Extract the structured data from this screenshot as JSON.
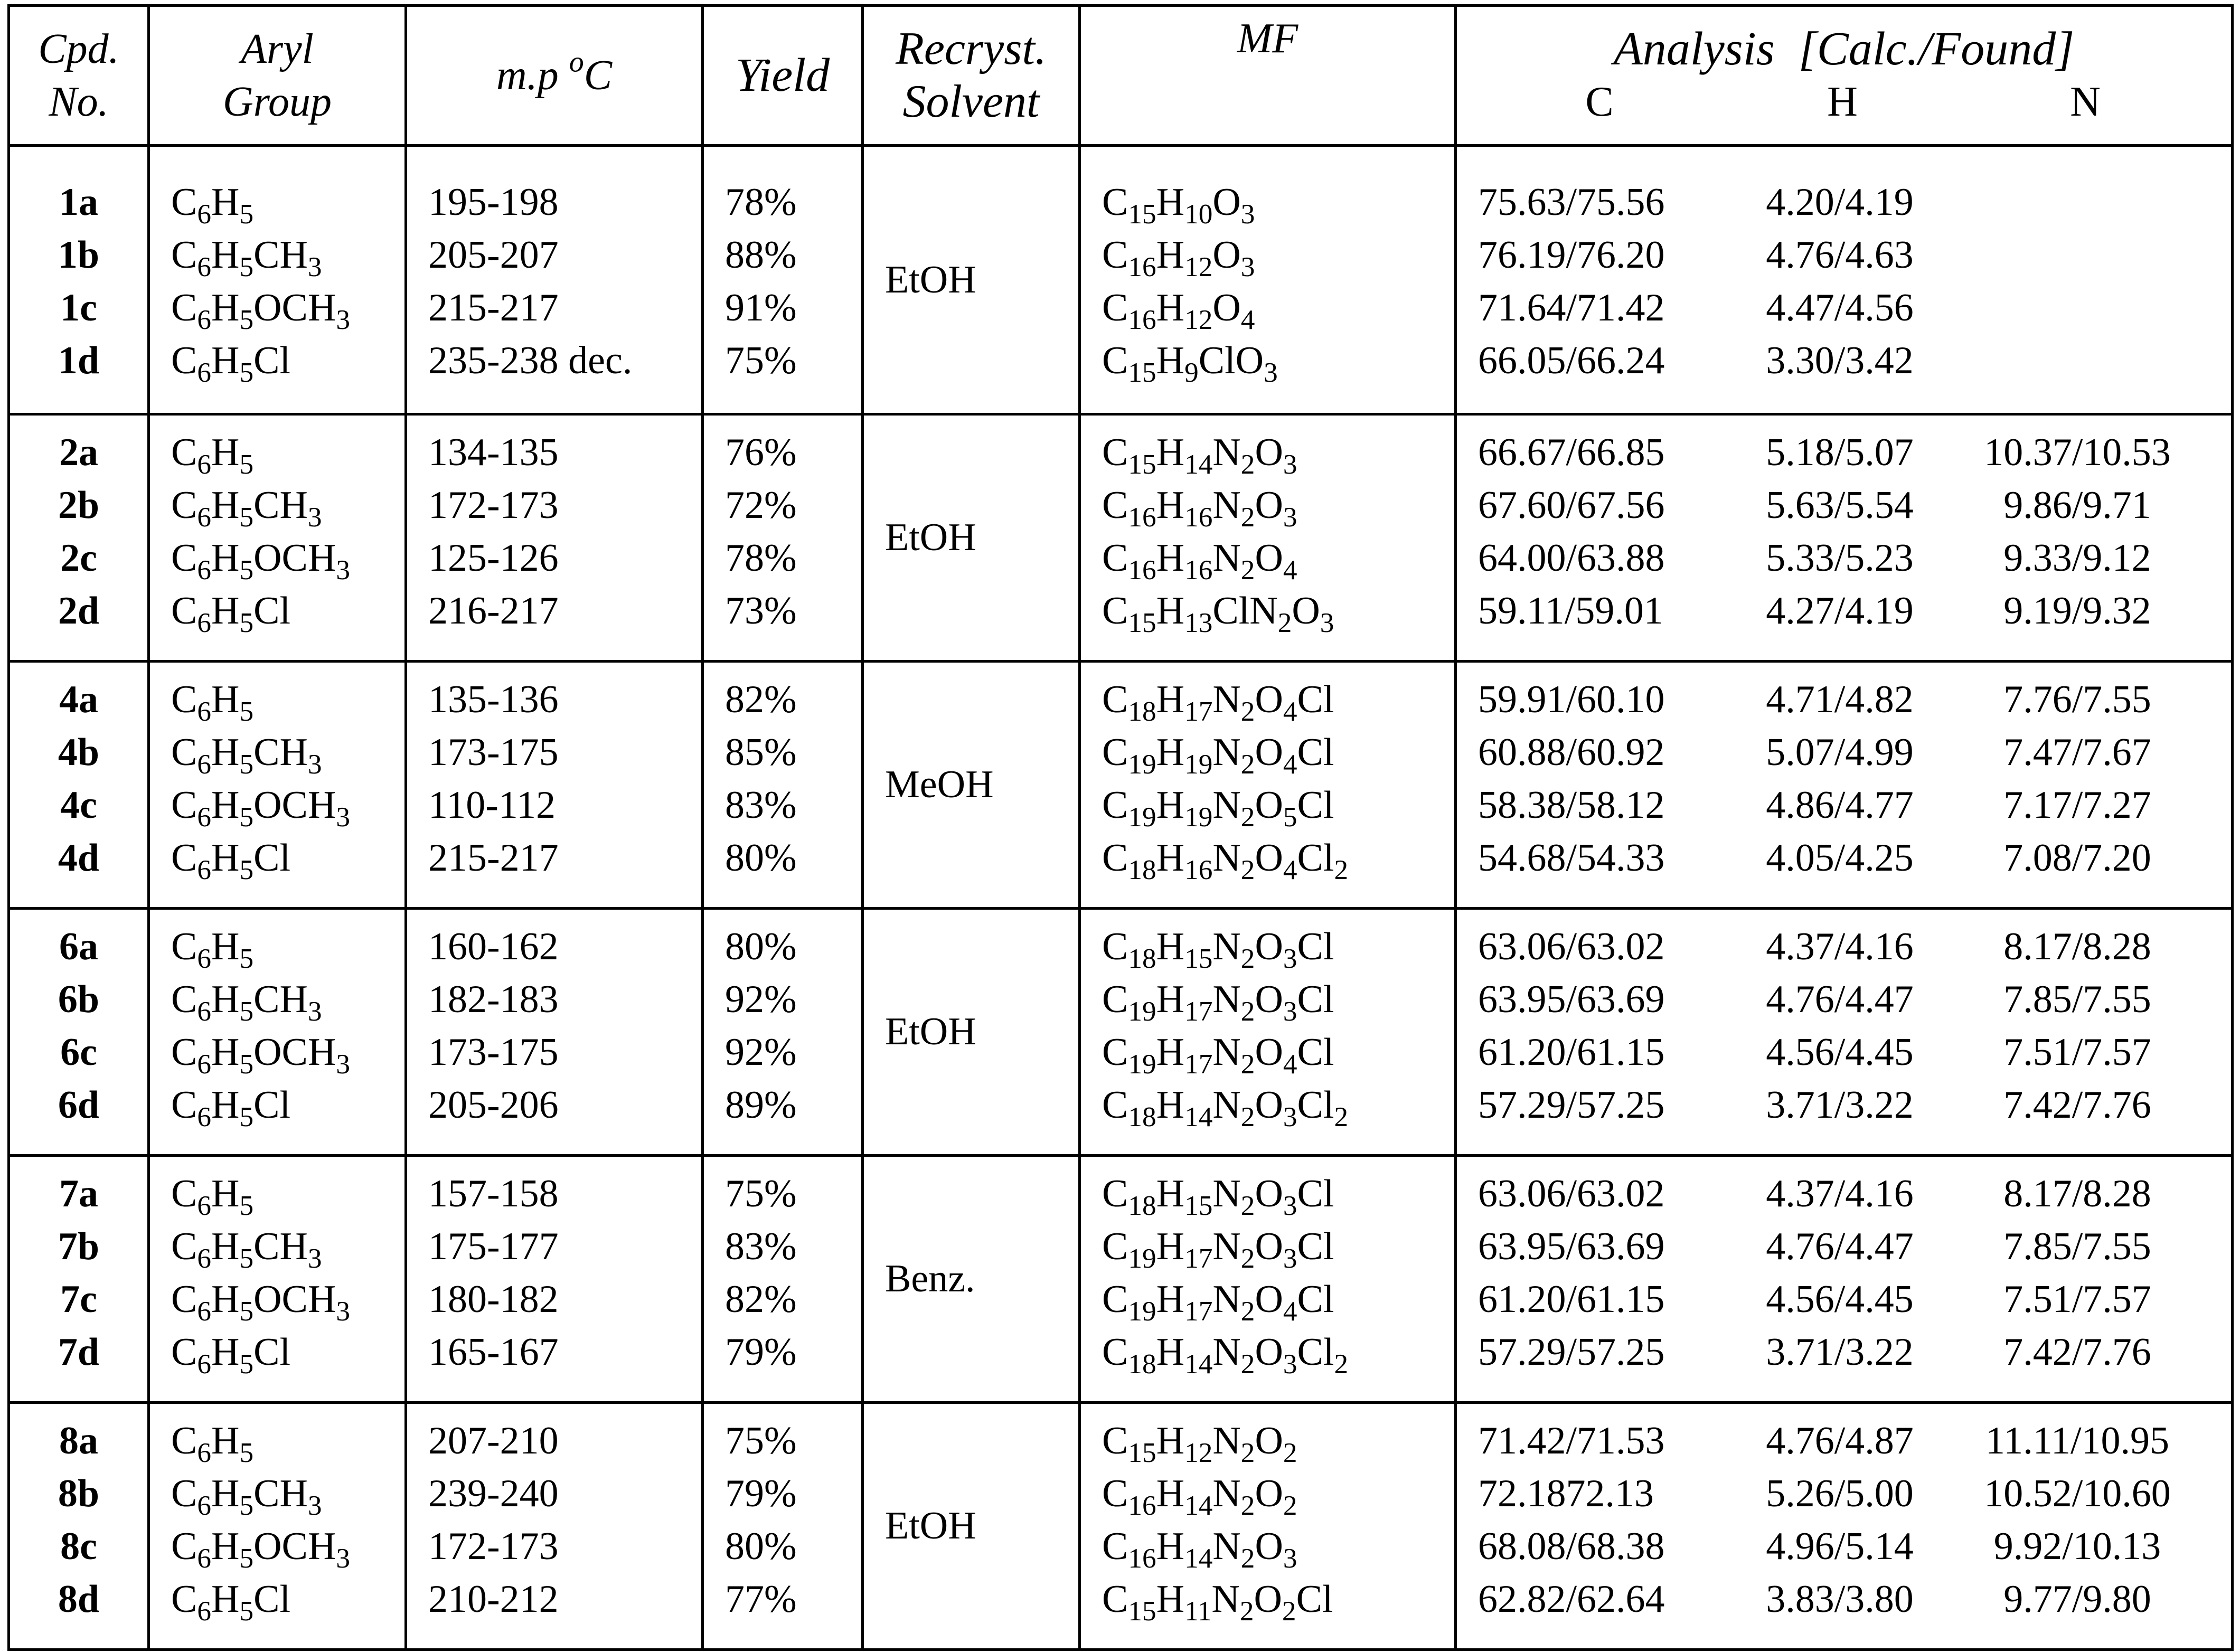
{
  "header": {
    "cpd": [
      "Cpd.",
      "No."
    ],
    "aryl": [
      "Aryl",
      "Group"
    ],
    "mp": {
      "text": "m.p",
      "sup": "o",
      "unit": "C"
    },
    "yield": "Yield",
    "solvent": [
      "Recryst.",
      "Solvent"
    ],
    "mf": "MF",
    "analysis": "Analysis  [Calc./Found]",
    "c": "C",
    "h": "H",
    "n": "N"
  },
  "groups": [
    {
      "solvent": "EtOH",
      "rows": [
        {
          "cpd": "1a",
          "aryl": "C6H5",
          "mp": "195-198",
          "yield": "78%",
          "mf": "C15H10O3",
          "c": "75.63/75.56",
          "h": "4.20/4.19"
        },
        {
          "cpd": "1b",
          "aryl": "C6H5CH3",
          "mp": "205-207",
          "yield": "88%",
          "mf": "C16H12O3",
          "c": "76.19/76.20",
          "h": "4.76/4.63"
        },
        {
          "cpd": "1c",
          "aryl": "C6H5OCH3",
          "mp": "215-217",
          "yield": "91%",
          "mf": "C16H12O4",
          "c": "71.64/71.42",
          "h": "4.47/4.56"
        },
        {
          "cpd": "1d",
          "aryl": "C6H5Cl",
          "mp": "235-238 dec.",
          "yield": "75%",
          "mf": "C15H9ClO3",
          "c": "66.05/66.24",
          "h": "3.30/3.42"
        }
      ]
    },
    {
      "solvent": "EtOH",
      "rows": [
        {
          "cpd": "2a",
          "aryl": "C6H5",
          "mp": "134-135",
          "yield": "76%",
          "mf": "C15H14N2O3",
          "c": "66.67/66.85",
          "h": "5.18/5.07",
          "n": "10.37/10.53"
        },
        {
          "cpd": "2b",
          "aryl": "C6H5CH3",
          "mp": "172-173",
          "yield": "72%",
          "mf": "C16H16N2O3",
          "c": "67.60/67.56",
          "h": "5.63/5.54",
          "n": "9.86/9.71"
        },
        {
          "cpd": "2c",
          "aryl": "C6H5OCH3",
          "mp": "125-126",
          "yield": "78%",
          "mf": "C16H16N2O4",
          "c": "64.00/63.88",
          "h": "5.33/5.23",
          "n": "9.33/9.12"
        },
        {
          "cpd": "2d",
          "aryl": "C6H5Cl",
          "mp": "216-217",
          "yield": "73%",
          "mf": "C15H13ClN2O3",
          "c": "59.11/59.01",
          "h": "4.27/4.19",
          "n": "9.19/9.32"
        }
      ]
    },
    {
      "solvent": "MeOH",
      "rows": [
        {
          "cpd": "4a",
          "aryl": "C6H5",
          "mp": "135-136",
          "yield": "82%",
          "mf": "C18H17N2O4Cl",
          "c": "59.91/60.10",
          "h": "4.71/4.82",
          "n": "7.76/7.55"
        },
        {
          "cpd": "4b",
          "aryl": "C6H5CH3",
          "mp": "173-175",
          "yield": "85%",
          "mf": "C19H19N2O4Cl",
          "c": "60.88/60.92",
          "h": "5.07/4.99",
          "n": "7.47/7.67"
        },
        {
          "cpd": "4c",
          "aryl": "C6H5OCH3",
          "mp": "110-112",
          "yield": "83%",
          "mf": "C19H19N2O5Cl",
          "c": "58.38/58.12",
          "h": "4.86/4.77",
          "n": "7.17/7.27"
        },
        {
          "cpd": "4d",
          "aryl": "C6H5Cl",
          "mp": "215-217",
          "yield": "80%",
          "mf": "C18H16N2O4Cl2",
          "c": "54.68/54.33",
          "h": "4.05/4.25",
          "n": "7.08/7.20"
        }
      ]
    },
    {
      "solvent": "EtOH",
      "rows": [
        {
          "cpd": "6a",
          "aryl": "C6H5",
          "mp": "160-162",
          "yield": "80%",
          "mf": "C18H15N2O3Cl",
          "c": "63.06/63.02",
          "h": "4.37/4.16",
          "n": "8.17/8.28"
        },
        {
          "cpd": "6b",
          "aryl": "C6H5CH3",
          "mp": "182-183",
          "yield": "92%",
          "mf": "C19H17N2O3Cl",
          "c": "63.95/63.69",
          "h": "4.76/4.47",
          "n": "7.85/7.55"
        },
        {
          "cpd": "6c",
          "aryl": "C6H5OCH3",
          "mp": "173-175",
          "yield": "92%",
          "mf": "C19H17N2O4Cl",
          "c": "61.20/61.15",
          "h": "4.56/4.45",
          "n": "7.51/7.57"
        },
        {
          "cpd": "6d",
          "aryl": "C6H5Cl",
          "mp": "205-206",
          "yield": "89%",
          "mf": "C18H14N2O3Cl2",
          "c": "57.29/57.25",
          "h": "3.71/3.22",
          "n": "7.42/7.76"
        }
      ]
    },
    {
      "solvent": "Benz.",
      "rows": [
        {
          "cpd": "7a",
          "aryl": "C6H5",
          "mp": "157-158",
          "yield": "75%",
          "mf": "C18H15N2O3Cl",
          "c": "63.06/63.02",
          "h": "4.37/4.16",
          "n": "8.17/8.28"
        },
        {
          "cpd": "7b",
          "aryl": "C6H5CH3",
          "mp": "175-177",
          "yield": "83%",
          "mf": "C19H17N2O3Cl",
          "c": "63.95/63.69",
          "h": "4.76/4.47",
          "n": "7.85/7.55"
        },
        {
          "cpd": "7c",
          "aryl": "C6H5OCH3",
          "mp": "180-182",
          "yield": "82%",
          "mf": "C19H17N2O4Cl",
          "c": "61.20/61.15",
          "h": "4.56/4.45",
          "n": "7.51/7.57"
        },
        {
          "cpd": "7d",
          "aryl": "C6H5Cl",
          "mp": "165-167",
          "yield": "79%",
          "mf": "C18H14N2O3Cl2",
          "c": "57.29/57.25",
          "h": "3.71/3.22",
          "n": "7.42/7.76"
        }
      ]
    },
    {
      "solvent": "EtOH",
      "rows": [
        {
          "cpd": "8a",
          "aryl": "C6H5",
          "mp": "207-210",
          "yield": "75%",
          "mf": "C15H12N2O2",
          "c": "71.42/71.53",
          "h": "4.76/4.87",
          "n": "11.11/10.95"
        },
        {
          "cpd": "8b",
          "aryl": "C6H5CH3",
          "mp": "239-240",
          "yield": "79%",
          "mf": "C16H14N2O2",
          "c": "72.1872.13",
          "h": "5.26/5.00",
          "n": "10.52/10.60"
        },
        {
          "cpd": "8c",
          "aryl": "C6H5OCH3",
          "mp": "172-173",
          "yield": "80%",
          "mf": "C16H14N2O3",
          "c": "68.08/68.38",
          "h": "4.96/5.14",
          "n": "9.92/10.13"
        },
        {
          "cpd": "8d",
          "aryl": "C6H5Cl",
          "mp": "210-212",
          "yield": "77%",
          "mf": "C15H11N2O2Cl",
          "c": "62.82/62.64",
          "h": "3.83/3.80",
          "n": "9.77/9.80"
        }
      ]
    }
  ]
}
